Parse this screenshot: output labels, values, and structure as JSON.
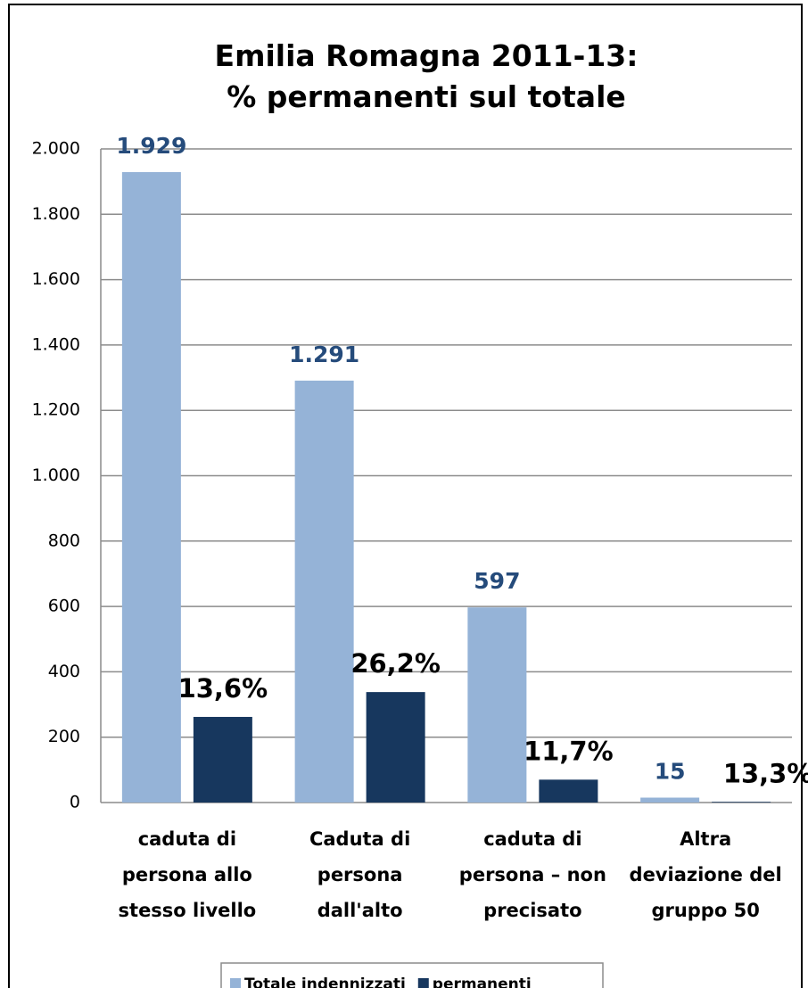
{
  "chart_data": {
    "type": "bar",
    "title": "Emilia Romagna 2011-13:\n% permanenti sul totale",
    "categories": [
      "caduta di\npersona allo\nstesso livello",
      "Caduta di\npersona\ndall'alto",
      "caduta di\npersona – non\nprecisato",
      "Altra\ndeviazione del\ngruppo 50"
    ],
    "series": [
      {
        "name": "Totale indennizzati",
        "color": "#95b3d7",
        "values": [
          1929,
          1291,
          597,
          15
        ],
        "value_labels": [
          "1.929",
          "1.291",
          "597",
          "15"
        ]
      },
      {
        "name": "permanenti",
        "color": "#17375e",
        "values": [
          262,
          338,
          70,
          2
        ],
        "shares": [
          {
            "value": 13.6,
            "label": "13,6%"
          },
          {
            "value": 26.2,
            "label": "26,2%"
          },
          {
            "value": 11.7,
            "label": "11,7%"
          },
          {
            "value": 13.3,
            "label": "13,3%"
          }
        ]
      }
    ],
    "ylim": [
      0,
      2000
    ],
    "yticks": [
      0,
      200,
      400,
      600,
      800,
      {
        "value": 1000,
        "label": "1.000"
      },
      {
        "value": 1200,
        "label": "1.200"
      },
      {
        "value": 1400,
        "label": "1.400"
      },
      {
        "value": 1600,
        "label": "1.600"
      },
      {
        "value": 1800,
        "label": "1.800"
      },
      {
        "value": 2000,
        "label": "2.000"
      }
    ],
    "grid": true,
    "legend": "bottom"
  }
}
